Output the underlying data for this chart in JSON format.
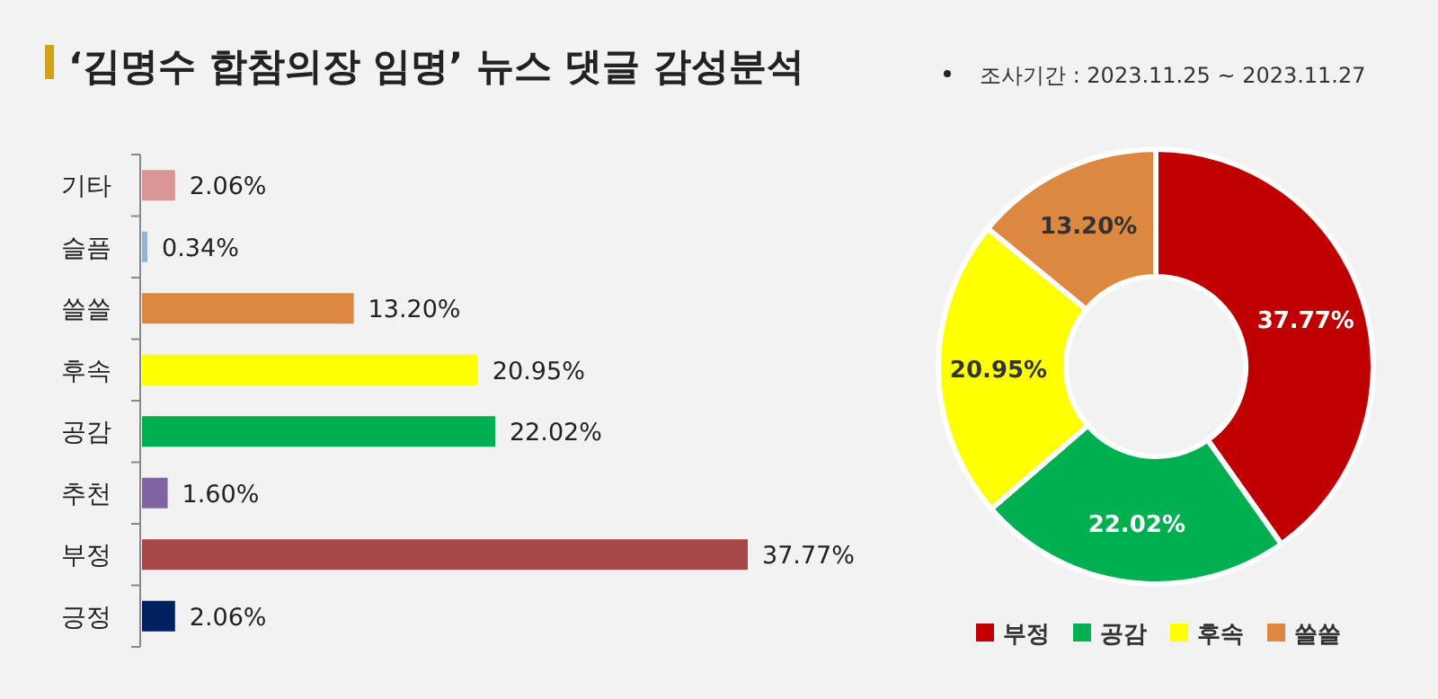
{
  "chart_data": [
    {
      "type": "bar",
      "orientation": "horizontal",
      "title": "‘김명수 합참의장 임명’ 뉴스 댓글 감성분석",
      "categories": [
        "기타",
        "슬픔",
        "쓸쓸",
        "후속",
        "공감",
        "추천",
        "부정",
        "긍정"
      ],
      "values": [
        2.06,
        0.34,
        13.2,
        20.95,
        22.02,
        1.6,
        37.77,
        2.06
      ],
      "colors": [
        "#d99694",
        "#95b3d7",
        "#dd8840",
        "#ffff00",
        "#00b050",
        "#8064a2",
        "#a84848",
        "#002060"
      ],
      "value_labels": [
        "2.06%",
        "0.34%",
        "13.20%",
        "20.95%",
        "22.02%",
        "1.60%",
        "37.77%",
        "2.06%"
      ]
    },
    {
      "type": "donut",
      "annotations": [
        "조사기간 : 2023.11.25 ~ 2023.11.27"
      ],
      "categories": [
        "부정",
        "공감",
        "후속",
        "쓸쓸"
      ],
      "values": [
        37.77,
        22.02,
        20.95,
        13.2
      ],
      "colors": [
        "#c00000",
        "#00b050",
        "#ffff00",
        "#dd8840"
      ],
      "value_labels": [
        "37.77%",
        "22.02%",
        "20.95%",
        "13.20%"
      ],
      "legend": "bottom"
    }
  ]
}
